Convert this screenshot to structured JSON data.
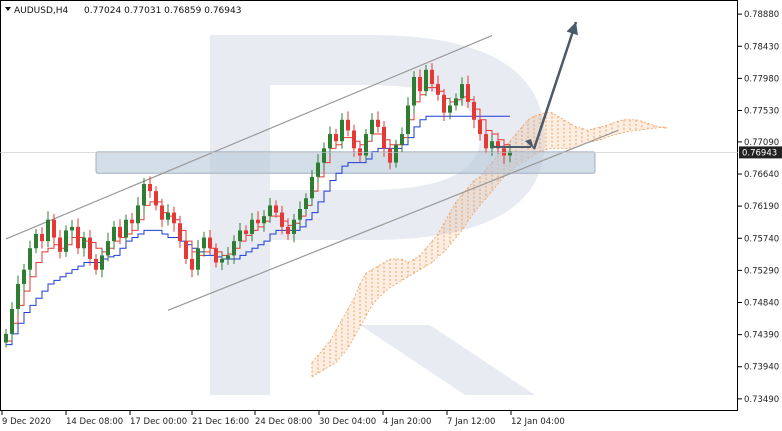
{
  "header": {
    "symbol": "AUDUSD,H4",
    "quote": "0.77024 0.77031 0.76859 0.76943"
  },
  "colors": {
    "bull": "#2e7d32",
    "bear": "#e53935",
    "tenkan": "#e53935",
    "kijun": "#1e3bd6",
    "cloud": "#f0a060",
    "channel": "#9a9a9a",
    "zone": "#b8c8d8",
    "arrow": "#4a5a68",
    "watermark": "#e4e8f0",
    "current_label_bg": "#222222",
    "current_label_text": "#ffffff"
  },
  "chart_data": {
    "type": "candlestick",
    "title": "AUDUSD,H4",
    "ylim": [
      0.7332,
      0.7905
    ],
    "y_ticks": [
      "0.78880",
      "0.78430",
      "0.77980",
      "0.77530",
      "0.77090",
      "0.76640",
      "0.76190",
      "0.75740",
      "0.75290",
      "0.74840",
      "0.74390",
      "0.73940",
      "0.73490"
    ],
    "current_price": "0.76943",
    "x_ticks": [
      "9 Dec 2020",
      "14 Dec 08:00",
      "17 Dec 00:00",
      "21 Dec 16:00",
      "24 Dec 08:00",
      "30 Dec 04:00",
      "4 Jan 20:00",
      "7 Jan 12:00",
      "12 Jan 04:00"
    ],
    "candles_close": [
      0.744,
      0.7475,
      0.751,
      0.753,
      0.756,
      0.758,
      0.757,
      0.76,
      0.7575,
      0.7555,
      0.7585,
      0.759,
      0.756,
      0.7575,
      0.7545,
      0.753,
      0.755,
      0.757,
      0.759,
      0.7575,
      0.76,
      0.7595,
      0.762,
      0.765,
      0.764,
      0.762,
      0.76,
      0.761,
      0.7595,
      0.757,
      0.7545,
      0.753,
      0.756,
      0.7575,
      0.756,
      0.754,
      0.7545,
      0.755,
      0.757,
      0.7585,
      0.758,
      0.76,
      0.7595,
      0.7605,
      0.762,
      0.761,
      0.759,
      0.758,
      0.76,
      0.7615,
      0.763,
      0.766,
      0.768,
      0.77,
      0.772,
      0.771,
      0.774,
      0.7725,
      0.77,
      0.769,
      0.772,
      0.774,
      0.773,
      0.77,
      0.768,
      0.7705,
      0.772,
      0.776,
      0.78,
      0.778,
      0.781,
      0.779,
      0.7775,
      0.775,
      0.776,
      0.777,
      0.779,
      0.7765,
      0.774,
      0.772,
      0.77,
      0.771,
      0.77,
      0.769,
      0.7695
    ],
    "tenkan": [
      0.743,
      0.7455,
      0.748,
      0.75,
      0.752,
      0.754,
      0.7555,
      0.756,
      0.7565,
      0.756,
      0.7565,
      0.7575,
      0.7575,
      0.757,
      0.7568,
      0.756,
      0.7555,
      0.756,
      0.757,
      0.7575,
      0.758,
      0.7585,
      0.76,
      0.762,
      0.7625,
      0.7625,
      0.761,
      0.7605,
      0.76,
      0.7585,
      0.757,
      0.7555,
      0.755,
      0.7555,
      0.756,
      0.7555,
      0.755,
      0.7552,
      0.756,
      0.757,
      0.7578,
      0.7585,
      0.759,
      0.7598,
      0.7605,
      0.7605,
      0.7598,
      0.7592,
      0.7595,
      0.7605,
      0.762,
      0.764,
      0.766,
      0.768,
      0.77,
      0.7705,
      0.7715,
      0.7715,
      0.771,
      0.7705,
      0.771,
      0.772,
      0.772,
      0.7712,
      0.7705,
      0.7705,
      0.7715,
      0.774,
      0.7765,
      0.7775,
      0.7785,
      0.7785,
      0.778,
      0.777,
      0.7765,
      0.7768,
      0.7772,
      0.7768,
      0.7755,
      0.774,
      0.7725,
      0.772,
      0.7712,
      0.7705,
      0.7702
    ],
    "kijun": [
      0.7425,
      0.744,
      0.7455,
      0.747,
      0.748,
      0.749,
      0.75,
      0.751,
      0.7515,
      0.752,
      0.7525,
      0.753,
      0.7535,
      0.754,
      0.754,
      0.754,
      0.7545,
      0.7548,
      0.755,
      0.756,
      0.757,
      0.7575,
      0.758,
      0.7585,
      0.7585,
      0.7585,
      0.758,
      0.7575,
      0.7575,
      0.757,
      0.7565,
      0.756,
      0.7555,
      0.755,
      0.755,
      0.7548,
      0.7545,
      0.7545,
      0.7545,
      0.755,
      0.7555,
      0.756,
      0.7565,
      0.757,
      0.758,
      0.7585,
      0.7585,
      0.7585,
      0.7585,
      0.759,
      0.76,
      0.761,
      0.7625,
      0.764,
      0.7655,
      0.7665,
      0.7675,
      0.768,
      0.768,
      0.768,
      0.7685,
      0.7695,
      0.77,
      0.77,
      0.77,
      0.77,
      0.7705,
      0.7715,
      0.773,
      0.774,
      0.7745,
      0.7745,
      0.7745,
      0.7745,
      0.7745,
      0.7745,
      0.7745,
      0.7745,
      0.7745,
      0.7745,
      0.7745,
      0.7745,
      0.7745,
      0.7745,
      0.7745
    ],
    "cloud_upper": [
      0.74,
      0.741,
      0.742,
      0.743,
      0.7445,
      0.746,
      0.7475,
      0.749,
      0.751,
      0.7525,
      0.753,
      0.7535,
      0.754,
      0.7545,
      0.7545,
      0.7545,
      0.754,
      0.7545,
      0.755,
      0.756,
      0.757,
      0.758,
      0.7595,
      0.761,
      0.7625,
      0.7635,
      0.7645,
      0.7655,
      0.766,
      0.767,
      0.768,
      0.769,
      0.77,
      0.771,
      0.772,
      0.773,
      0.774,
      0.7745,
      0.7748,
      0.775,
      0.775,
      0.7745,
      0.774,
      0.7735,
      0.773,
      0.7728,
      0.7725,
      0.7728,
      0.773,
      0.7732,
      0.7735,
      0.7738,
      0.774,
      0.774,
      0.774,
      0.7738,
      0.7735,
      0.7732,
      0.773,
      0.7728
    ],
    "cloud_lower": [
      0.738,
      0.7385,
      0.739,
      0.7395,
      0.74,
      0.741,
      0.742,
      0.7435,
      0.745,
      0.7465,
      0.748,
      0.749,
      0.7498,
      0.7505,
      0.751,
      0.7515,
      0.752,
      0.7525,
      0.753,
      0.7535,
      0.754,
      0.7548,
      0.7555,
      0.7565,
      0.7575,
      0.7585,
      0.7598,
      0.761,
      0.762,
      0.763,
      0.764,
      0.765,
      0.766,
      0.7668,
      0.7675,
      0.768,
      0.7685,
      0.769,
      0.7695,
      0.7698,
      0.77,
      0.77,
      0.77,
      0.77,
      0.7702,
      0.7705,
      0.7708,
      0.771,
      0.7712,
      0.7715,
      0.7718,
      0.772,
      0.7722,
      0.7724,
      0.7725,
      0.7726,
      0.7727,
      0.7728,
      0.7729,
      0.773
    ],
    "support_zone": [
      0.7665,
      0.7695
    ],
    "channel_upper": [
      [
        0,
        0.7573
      ],
      [
        81,
        0.7858
      ]
    ],
    "channel_lower": [
      [
        27,
        0.7473
      ],
      [
        102,
        0.7725
      ]
    ],
    "forecast_arrow": [
      [
        88,
        0.7699
      ],
      [
        95,
        0.7877
      ]
    ]
  }
}
